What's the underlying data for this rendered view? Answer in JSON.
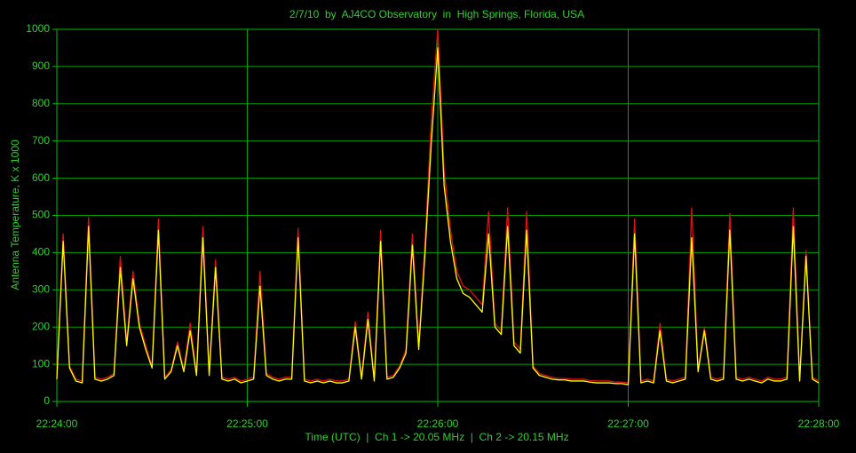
{
  "chart_data": {
    "type": "line",
    "title": "2/7/10  by  AJ4CO Observatory  in  High Springs, Florida, USA",
    "xlabel": "Time (UTC)  |  Ch 1 -> 20.05 MHz  |  Ch 2 -> 20.15 MHz",
    "ylabel": "Antenna Temperature, K x 1000",
    "xlim": [
      "22:24:00",
      "22:28:00"
    ],
    "xticks": [
      "22:24:00",
      "22:25:00",
      "22:26:00",
      "22:27:00",
      "22:28:00"
    ],
    "ylim": [
      0,
      1000
    ],
    "yticks": [
      0,
      100,
      200,
      300,
      400,
      500,
      600,
      700,
      800,
      900,
      1000
    ],
    "grid": true,
    "x": [
      "22:24:00",
      "22:24:02",
      "22:24:04",
      "22:24:06",
      "22:24:08",
      "22:24:10",
      "22:24:12",
      "22:24:14",
      "22:24:16",
      "22:24:18",
      "22:24:20",
      "22:24:22",
      "22:24:24",
      "22:24:26",
      "22:24:28",
      "22:24:30",
      "22:24:32",
      "22:24:34",
      "22:24:36",
      "22:24:38",
      "22:24:40",
      "22:24:42",
      "22:24:44",
      "22:24:46",
      "22:24:48",
      "22:24:50",
      "22:24:52",
      "22:24:54",
      "22:24:56",
      "22:24:58",
      "22:25:00",
      "22:25:02",
      "22:25:04",
      "22:25:06",
      "22:25:08",
      "22:25:10",
      "22:25:12",
      "22:25:14",
      "22:25:16",
      "22:25:18",
      "22:25:20",
      "22:25:22",
      "22:25:24",
      "22:25:26",
      "22:25:28",
      "22:25:30",
      "22:25:32",
      "22:25:34",
      "22:25:36",
      "22:25:38",
      "22:25:40",
      "22:25:42",
      "22:25:44",
      "22:25:46",
      "22:25:48",
      "22:25:50",
      "22:25:52",
      "22:25:54",
      "22:25:56",
      "22:25:58",
      "22:26:00",
      "22:26:02",
      "22:26:04",
      "22:26:06",
      "22:26:08",
      "22:26:10",
      "22:26:12",
      "22:26:14",
      "22:26:16",
      "22:26:18",
      "22:26:20",
      "22:26:22",
      "22:26:24",
      "22:26:26",
      "22:26:28",
      "22:26:30",
      "22:26:32",
      "22:26:34",
      "22:26:36",
      "22:26:38",
      "22:26:40",
      "22:26:42",
      "22:26:44",
      "22:26:46",
      "22:26:48",
      "22:26:50",
      "22:26:52",
      "22:26:54",
      "22:26:56",
      "22:26:58",
      "22:27:00",
      "22:27:02",
      "22:27:04",
      "22:27:06",
      "22:27:08",
      "22:27:10",
      "22:27:12",
      "22:27:14",
      "22:27:16",
      "22:27:18",
      "22:27:20",
      "22:27:22",
      "22:27:24",
      "22:27:26",
      "22:27:28",
      "22:27:30",
      "22:27:32",
      "22:27:34",
      "22:27:36",
      "22:27:38",
      "22:27:40",
      "22:27:42",
      "22:27:44",
      "22:27:46",
      "22:27:48",
      "22:27:50",
      "22:27:52",
      "22:27:54",
      "22:27:56",
      "22:27:58",
      "22:28:00"
    ],
    "series": [
      {
        "name": "Ch 1",
        "color": "#e01010",
        "values": [
          65,
          450,
          95,
          60,
          55,
          495,
          65,
          60,
          65,
          75,
          390,
          160,
          350,
          210,
          150,
          95,
          490,
          65,
          85,
          160,
          85,
          210,
          75,
          470,
          75,
          380,
          65,
          60,
          65,
          55,
          60,
          65,
          350,
          75,
          65,
          60,
          65,
          65,
          465,
          60,
          55,
          60,
          55,
          60,
          55,
          55,
          60,
          215,
          65,
          240,
          60,
          460,
          65,
          70,
          95,
          140,
          450,
          150,
          430,
          760,
          1000,
          620,
          460,
          350,
          310,
          300,
          280,
          260,
          510,
          210,
          190,
          520,
          160,
          140,
          510,
          95,
          75,
          70,
          65,
          62,
          62,
          60,
          60,
          60,
          56,
          55,
          55,
          55,
          52,
          52,
          50,
          490,
          55,
          60,
          55,
          210,
          60,
          55,
          60,
          65,
          520,
          85,
          200,
          65,
          60,
          65,
          505,
          65,
          60,
          65,
          60,
          55,
          65,
          60,
          60,
          65,
          520,
          60,
          405,
          65,
          55
        ]
      },
      {
        "name": "Ch 2",
        "color": "#ffff00",
        "values": [
          60,
          430,
          90,
          55,
          50,
          470,
          60,
          55,
          60,
          70,
          360,
          150,
          330,
          200,
          140,
          90,
          460,
          60,
          80,
          150,
          80,
          190,
          70,
          440,
          70,
          360,
          60,
          55,
          60,
          50,
          55,
          60,
          310,
          70,
          60,
          55,
          60,
          60,
          440,
          55,
          50,
          55,
          50,
          55,
          50,
          50,
          55,
          200,
          60,
          220,
          55,
          430,
          60,
          65,
          90,
          130,
          420,
          140,
          400,
          700,
          950,
          580,
          430,
          330,
          290,
          280,
          260,
          240,
          450,
          200,
          180,
          470,
          150,
          130,
          460,
          90,
          70,
          65,
          60,
          58,
          58,
          55,
          55,
          55,
          52,
          50,
          50,
          50,
          48,
          48,
          45,
          450,
          50,
          55,
          50,
          190,
          55,
          50,
          55,
          60,
          440,
          80,
          190,
          60,
          55,
          60,
          460,
          60,
          55,
          60,
          55,
          50,
          60,
          55,
          55,
          60,
          470,
          55,
          390,
          60,
          50
        ]
      }
    ]
  }
}
